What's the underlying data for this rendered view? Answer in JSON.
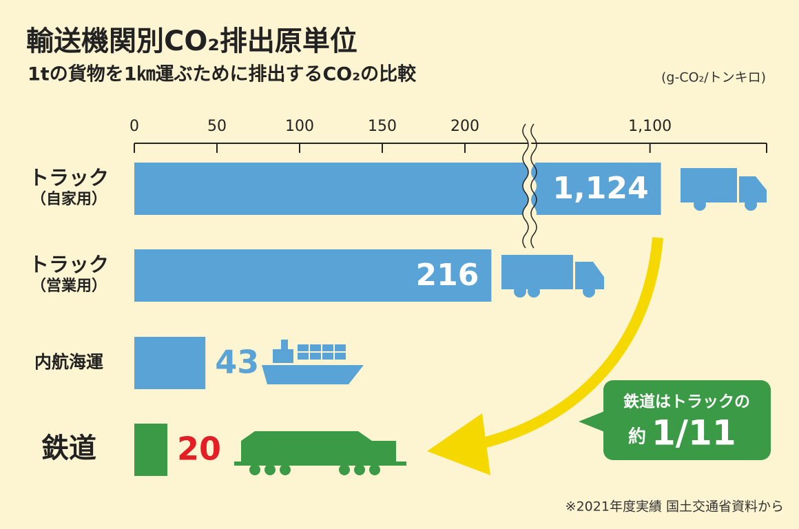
{
  "chart_data": {
    "type": "bar",
    "title": "輸送機関別CO₂排出原単位",
    "subtitle": "1tの貨物を1㎞運ぶために排出するCO₂の比較",
    "unit": "(g-CO₂/トンキロ)",
    "categories": [
      "トラック（自家用）",
      "トラック（営業用）",
      "内航海運",
      "鉄道"
    ],
    "values": [
      1124,
      216,
      43,
      20
    ],
    "value_labels": [
      "1,124",
      "216",
      "43",
      "20"
    ],
    "colors": [
      "#5aa3d6",
      "#5aa3d6",
      "#5aa3d6",
      "#3b9a45"
    ],
    "label_colors": [
      "#ffffff",
      "#ffffff",
      "#5aa3d6",
      "#e31e24"
    ],
    "label_position": [
      "inside",
      "inside",
      "outside",
      "outside"
    ],
    "xlim": [
      0,
      1355
    ],
    "xbreak": [
      240,
      840
    ],
    "xticks": [
      0,
      50,
      100,
      150,
      200,
      {
        "value": 1100,
        "label": "1,100"
      }
    ],
    "annotations": [
      "鉄道はトラックの",
      "約",
      "1/11"
    ],
    "note": "※2021年度実績 国土交通省資料から"
  }
}
